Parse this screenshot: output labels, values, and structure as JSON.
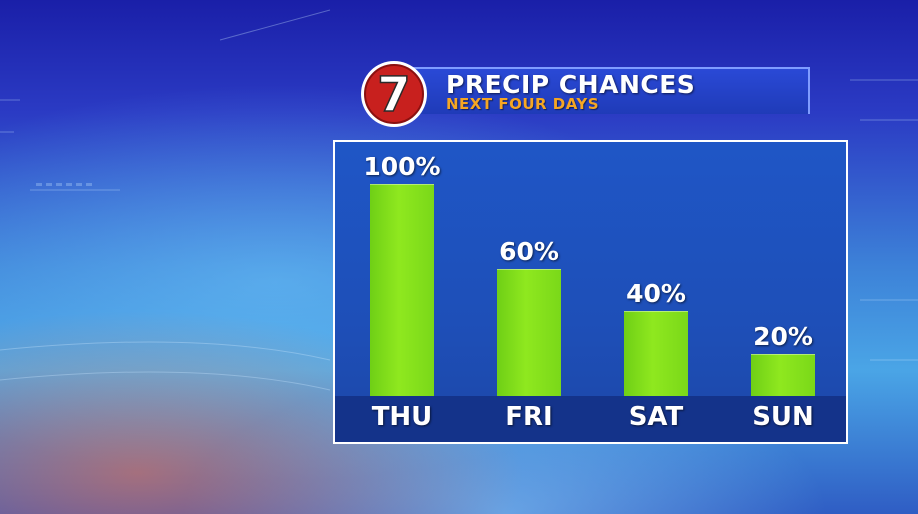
{
  "header": {
    "title": "PRECIP CHANCES",
    "subtitle": "NEXT FOUR DAYS",
    "logo_text": "7"
  },
  "colors": {
    "bar": "#8fe81f",
    "panel": "#1f56c6",
    "axis_strip": "#14338a",
    "subtitle": "#f5a623",
    "logo_red": "#c8201e"
  },
  "chart_data": {
    "type": "bar",
    "categories": [
      "THU",
      "FRI",
      "SAT",
      "SUN"
    ],
    "values": [
      100,
      60,
      40,
      20
    ],
    "value_labels": [
      "100%",
      "60%",
      "40%",
      "20%"
    ],
    "title": "PRECIP CHANCES",
    "subtitle": "NEXT FOUR DAYS",
    "ylim": [
      0,
      100
    ],
    "grid": false,
    "legend": "none"
  }
}
